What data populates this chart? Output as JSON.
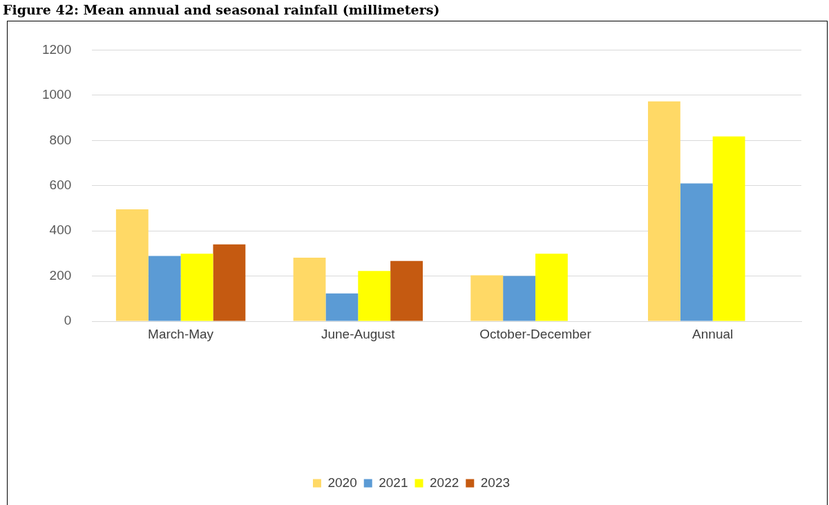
{
  "chart_data": {
    "type": "bar",
    "title": "Figure 42: Mean annual and seasonal rainfall (millimeters)",
    "categories": [
      "March-May",
      "June-August",
      "October-December",
      "Annual"
    ],
    "series": [
      {
        "name": "2020",
        "color": "#ffd966",
        "values": [
          495,
          281,
          203,
          973
        ]
      },
      {
        "name": "2021",
        "color": "#5b9bd5",
        "values": [
          289,
          123,
          200,
          610
        ]
      },
      {
        "name": "2022",
        "color": "#ffff00",
        "values": [
          299,
          222,
          299,
          818
        ]
      },
      {
        "name": "2023",
        "color": "#c55a11",
        "values": [
          340,
          267,
          null,
          null
        ]
      }
    ],
    "ylim": [
      0,
      1200
    ],
    "yticks": [
      0,
      200,
      400,
      600,
      800,
      1000,
      1200
    ],
    "grid": "y",
    "legend": "bottom"
  }
}
